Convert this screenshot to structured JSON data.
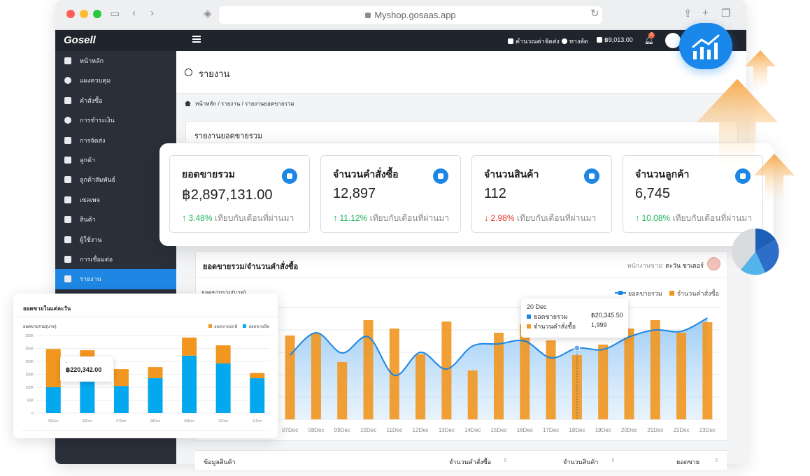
{
  "browser": {
    "url": "Myshop.gosaas.app"
  },
  "topbar": {
    "logo": "Gosell",
    "shipping_calc": "คำนวณค่าจัดส่ง",
    "shortcut": "ทางลัด",
    "balance": "฿9,013.00",
    "notification_count": "2"
  },
  "sidebar": {
    "items": [
      {
        "label": "หน้าหลัก",
        "icon": "home-icon"
      },
      {
        "label": "แผงควบคุม",
        "icon": "dashboard-icon"
      },
      {
        "label": "คำสั่งซื้อ",
        "icon": "cart-icon"
      },
      {
        "label": "การชำระเงิน",
        "icon": "dollar-icon"
      },
      {
        "label": "การจัดส่ง",
        "icon": "truck-icon"
      },
      {
        "label": "ลูกค้า",
        "icon": "users-icon"
      },
      {
        "label": "ลูกค้าสัมพันธ์",
        "icon": "user-tie-icon"
      },
      {
        "label": "เซลเพจ",
        "icon": "window-icon"
      },
      {
        "label": "สินค้า",
        "icon": "boxes-icon"
      },
      {
        "label": "ผู้ใช้งาน",
        "icon": "user-group-icon"
      },
      {
        "label": "การเชื่อมต่อ",
        "icon": "plug-icon"
      },
      {
        "label": "รายงาน",
        "icon": "report-icon",
        "active": true
      }
    ]
  },
  "page": {
    "title": "รายงาน",
    "breadcrumb": "หน้าหลัก  /  รายงาน  /  รายงานยอดขายรวม",
    "panel_title": "รายงานยอดขายรวม"
  },
  "stats": [
    {
      "title": "ยอดขายรวม",
      "value": "฿2,897,131.00",
      "change": "3.48%",
      "direction": "up",
      "note": "เทียบกับเดือนที่ผ่านมา",
      "icon": "money-bag-icon"
    },
    {
      "title": "จำนวนคำสั่งซื้อ",
      "value": "12,897",
      "change": "11.12%",
      "direction": "up",
      "note": "เทียบกับเดือนที่ผ่านมา",
      "icon": "cart-icon"
    },
    {
      "title": "จำนวนสินค้า",
      "value": "112",
      "change": "2.98%",
      "direction": "down",
      "note": "เทียบกับเดือนที่ผ่านมา",
      "icon": "box-icon"
    },
    {
      "title": "จำนวนลูกค้า",
      "value": "6,745",
      "change": "10.08%",
      "direction": "up",
      "note": "เทียบกับเดือนที่ผ่านมา",
      "icon": "users-icon"
    }
  ],
  "main_chart": {
    "title": "ยอดขายรวม/จำนวนคำสั่งซื้อ",
    "seller_label": "พนักงานขาย:",
    "seller_name": "ตะวัน ชาเตอร์",
    "ylabel": "ยอดขายรวม(บาท)",
    "legend_line": "ยอดขายรวม",
    "legend_bar": "จำนวนคำสั่งซื้อ",
    "tooltip": {
      "date": "20 Dec",
      "sales_label": "ยอดขายรวม",
      "sales_value": "฿20,345.50",
      "orders_label": "จำนวนคำสั่งซื้อ",
      "orders_value": "1,999"
    }
  },
  "chart_data": [
    {
      "type": "bar",
      "title": "",
      "xlabel": "",
      "ylabel": "ยอดขายรวม(บาท)",
      "categories": [
        "07Dec",
        "08Dec",
        "09Dec",
        "10Dec",
        "11Dec",
        "12Dec",
        "13Dec",
        "14Dec",
        "15Dec",
        "16Dec",
        "17Dec",
        "18Dec",
        "19Dec",
        "20Dec",
        "21Dec",
        "22Dec",
        "23Dec"
      ],
      "series": [
        {
          "name": "จำนวนคำสั่งซื้อ",
          "kind": "bar",
          "values": [
            120,
            123,
            82,
            142,
            130,
            93,
            140,
            70,
            124,
            136,
            113,
            92,
            107,
            130,
            142,
            124,
            139
          ]
        },
        {
          "name": "ยอดขายรวม",
          "kind": "line",
          "values": [
            92,
            124,
            95,
            118,
            63,
            96,
            72,
            105,
            108,
            112,
            88,
            102,
            100,
            118,
            128,
            126,
            145
          ]
        }
      ],
      "ylim": [
        0,
        160
      ],
      "grid": true,
      "legend": "top-right",
      "colors": {
        "bar": "#f1961f",
        "line": "#1b86e4"
      }
    },
    {
      "type": "bar",
      "title": "ยอดขายในแต่ละวัน",
      "ylabel": "ยอดขายรวม(บาท)",
      "categories": [
        "05Dec",
        "06Dec",
        "07Dec",
        "08Dec",
        "09Dec",
        "10Dec",
        "11Dec"
      ],
      "series": [
        {
          "name": "ยอดขายปกติ",
          "values": [
            148000,
            28000,
            65000,
            43000,
            70000,
            70000,
            20000
          ]
        },
        {
          "name": "ยอดขายอีพ",
          "values": [
            100000,
            215000,
            105000,
            135000,
            222000,
            192000,
            135000
          ]
        }
      ],
      "y_ticks": [
        "0",
        "50K",
        "100K",
        "150K",
        "200K",
        "250K",
        "300K"
      ],
      "ylim": [
        0,
        300000
      ],
      "stacked": true,
      "legend": "top-right",
      "colors": {
        "normal": "#f1961f",
        "other": "#04a8ef"
      },
      "tooltip_value": "฿220,342.00"
    }
  ],
  "mini_chart": {
    "title": "ยอดขายในแต่ละวัน",
    "ylabel": "ยอดขายรวม(บาท)",
    "legend_a": "ยอดขายปกติ",
    "legend_b": "ยอดขายอีพ",
    "tooltip_value": "฿220,342.00"
  },
  "table": {
    "headers": [
      "ข้อมูลสินค้า",
      "จำนวนคำสั่งซื้อ",
      "จำนวนสินค้า",
      "ยอดขาย"
    ]
  }
}
